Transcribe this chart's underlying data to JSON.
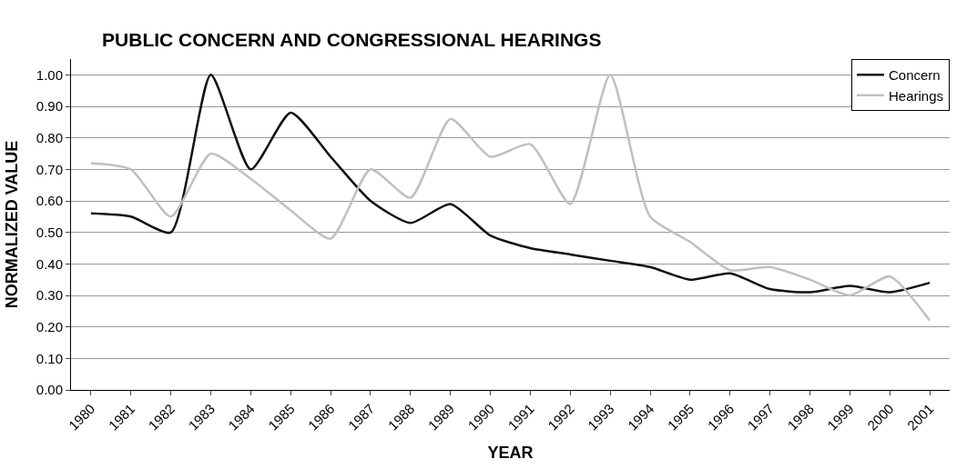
{
  "chart_data": {
    "type": "line",
    "title": "PUBLIC CONCERN AND CONGRESSIONAL HEARINGS",
    "xlabel": "YEAR",
    "ylabel": "NORMALIZED VALUE",
    "categories": [
      "1980",
      "1981",
      "1982",
      "1983",
      "1984",
      "1985",
      "1986",
      "1987",
      "1988",
      "1989",
      "1990",
      "1991",
      "1992",
      "1993",
      "1994",
      "1995",
      "1996",
      "1997",
      "1998",
      "1999",
      "2000",
      "2001"
    ],
    "series": [
      {
        "name": "Concern",
        "color": "#111111",
        "values": [
          0.56,
          0.55,
          0.5,
          1.0,
          0.7,
          0.88,
          0.74,
          0.6,
          0.53,
          0.59,
          0.49,
          0.45,
          0.43,
          0.41,
          0.39,
          0.35,
          0.37,
          0.32,
          0.31,
          0.33,
          0.31,
          0.34
        ]
      },
      {
        "name": "Hearings",
        "color": "#c0c0c0",
        "values": [
          0.72,
          0.7,
          0.55,
          0.75,
          0.67,
          0.57,
          0.48,
          0.7,
          0.61,
          0.86,
          0.74,
          0.78,
          0.59,
          1.0,
          0.55,
          0.47,
          0.38,
          0.39,
          0.35,
          0.3,
          0.36,
          0.22
        ]
      }
    ],
    "ylim": [
      0,
      1.05
    ],
    "yticks": [
      {
        "value": 0,
        "label": "0.00"
      },
      {
        "value": 0.1,
        "label": "0.10"
      },
      {
        "value": 0.2,
        "label": "0.20"
      },
      {
        "value": 0.3,
        "label": "0.30"
      },
      {
        "value": 0.4,
        "label": "0.40"
      },
      {
        "value": 0.5,
        "label": "0.50"
      },
      {
        "value": 0.6,
        "label": "0.60"
      },
      {
        "value": 0.7,
        "label": "0.70"
      },
      {
        "value": 0.8,
        "label": "0.80"
      },
      {
        "value": 0.9,
        "label": "0.90"
      },
      {
        "value": 1.0,
        "label": "1.00"
      }
    ],
    "grid": "y",
    "legend": "top right",
    "marker": "none",
    "line_style": "solid"
  }
}
